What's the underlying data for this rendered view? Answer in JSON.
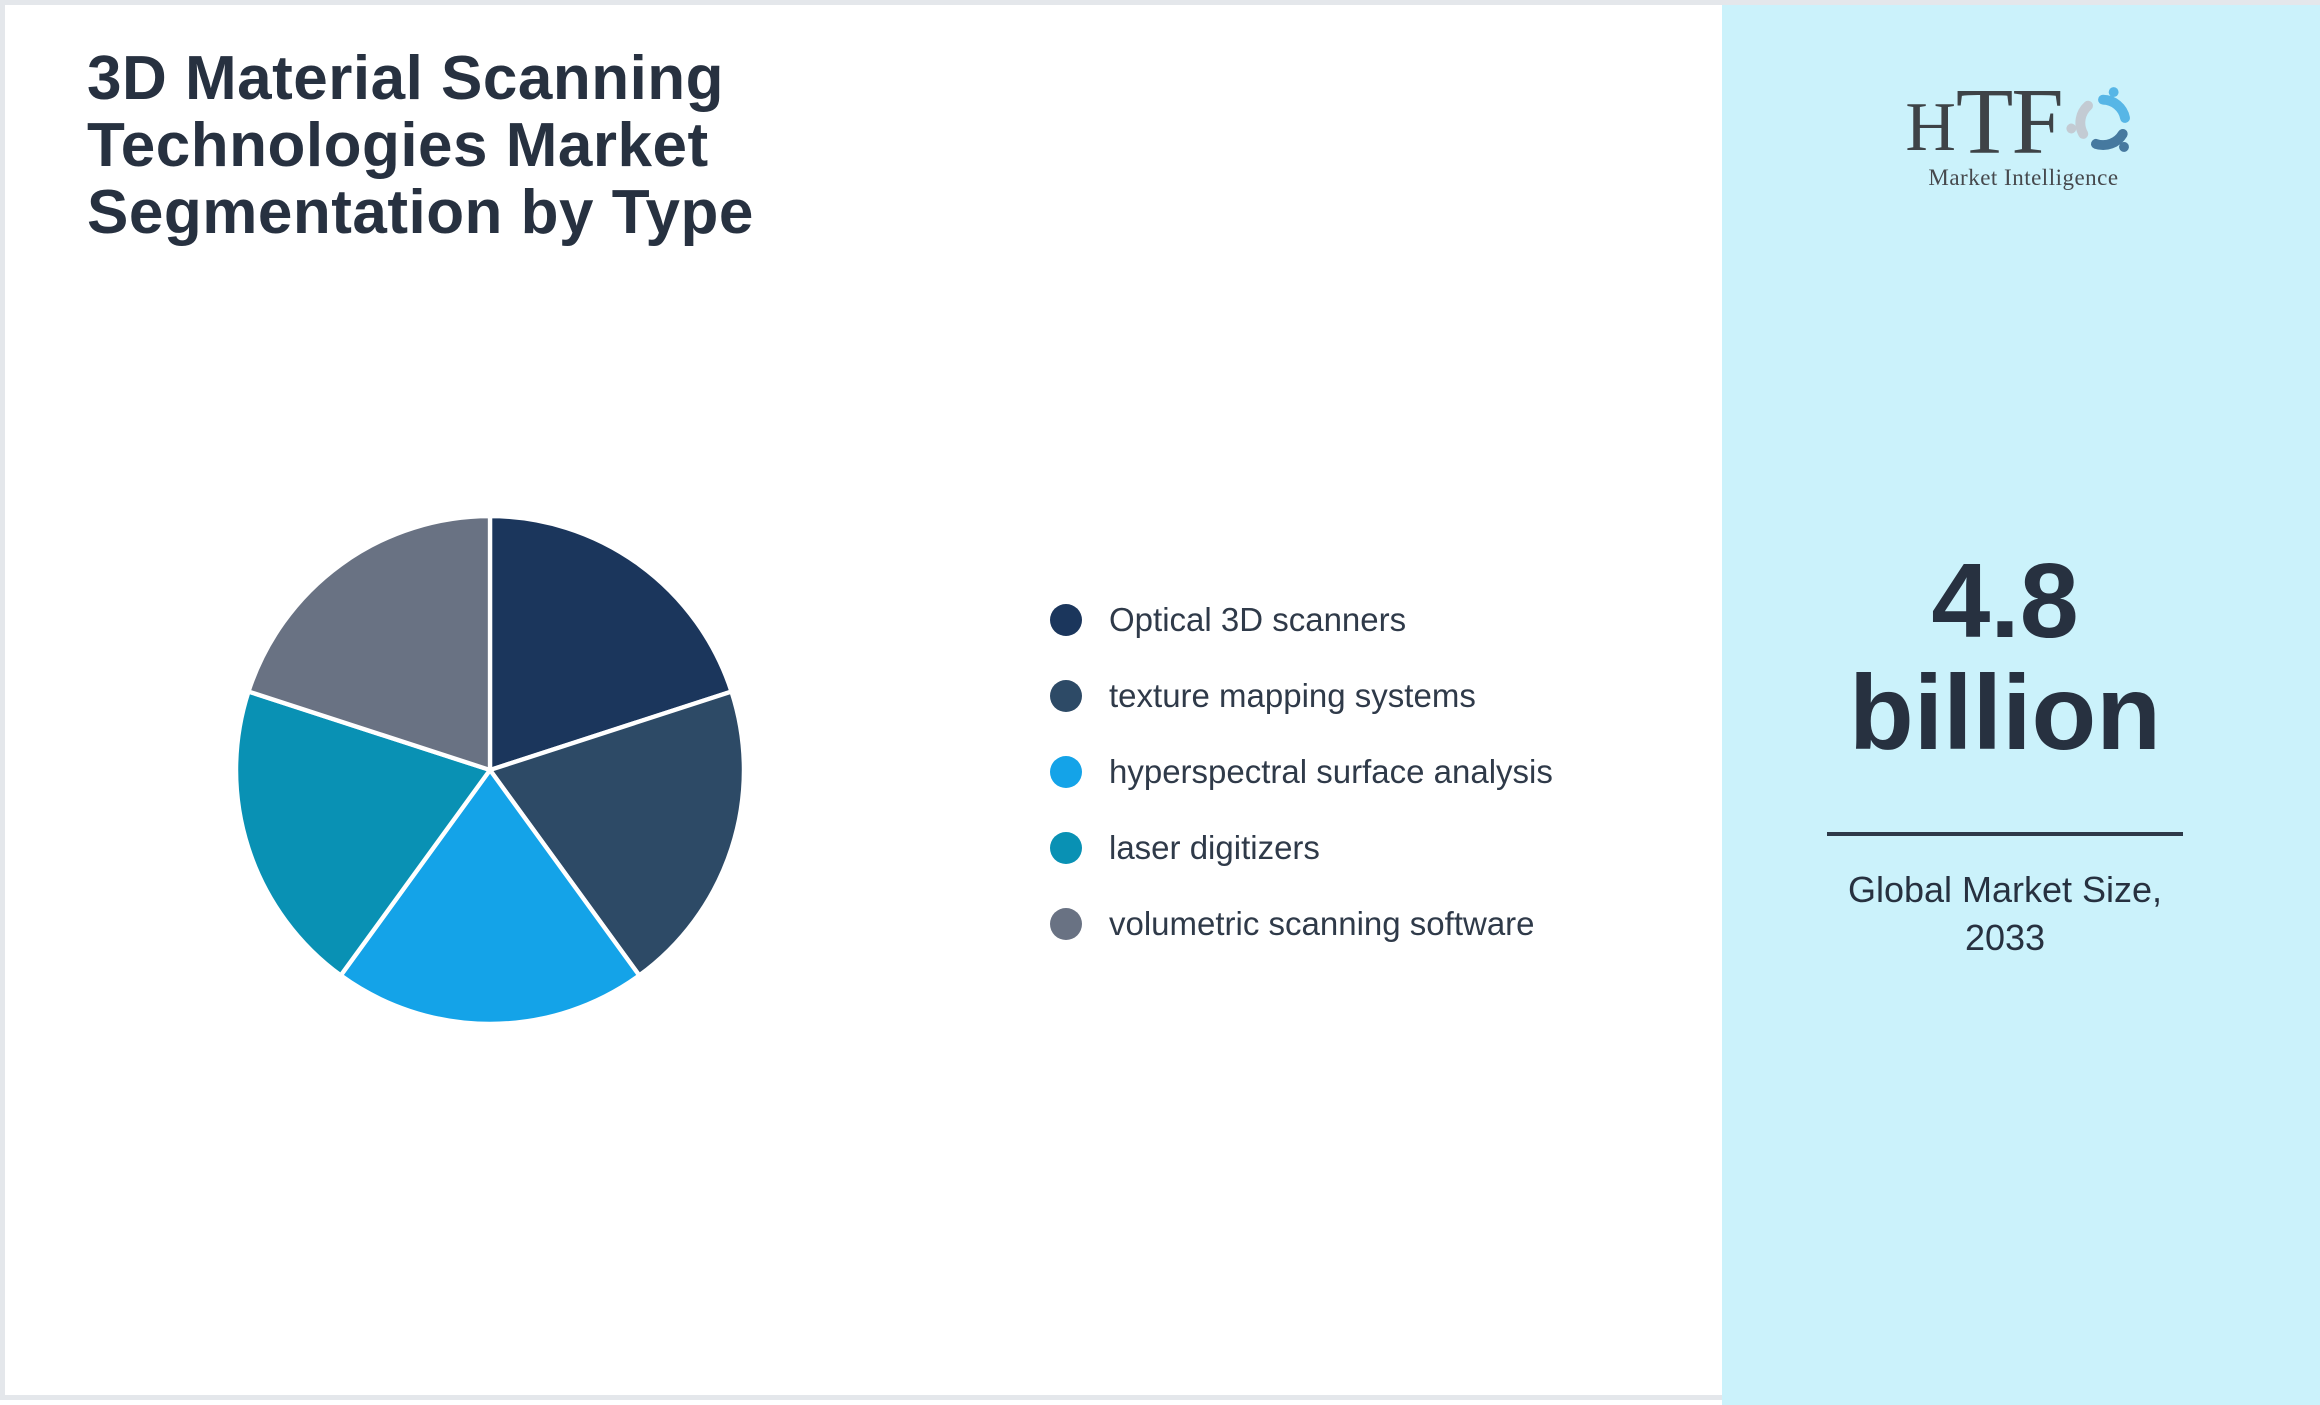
{
  "title_lines": [
    "3D Material Scanning",
    "Technologies Market",
    "Segmentation by Type"
  ],
  "chart_data": {
    "type": "pie",
    "title": "3D Material Scanning Technologies Market Segmentation by Type",
    "categories": [
      "Optical 3D scanners",
      "texture mapping systems",
      "hyperspectral surface analysis",
      "laser digitizers",
      "volumetric scanning software"
    ],
    "values": [
      20,
      20,
      20,
      20,
      20
    ],
    "value_labels_shown": false,
    "colors": [
      "#1B365C",
      "#2D4A66",
      "#14A3E8",
      "#0991B4",
      "#697283"
    ],
    "slice_border_color": "#FFFFFF",
    "start_angle_deg": 0,
    "direction": "clockwise",
    "legend_position": "right"
  },
  "sidebar": {
    "background_color": "#CBF2FB",
    "logo": {
      "text_h": "H",
      "text_tf": "TF",
      "subtitle": "Market Intelligence"
    },
    "value_line1": "4.8",
    "value_line2": "billion",
    "caption_line1": "Global Market Size,",
    "caption_line2": "2033"
  },
  "colors": {
    "title_text": "#273140",
    "legend_text": "#2F3A49",
    "accent_dark": "#2E3A49",
    "canvas_border": "#E4E7EB"
  }
}
